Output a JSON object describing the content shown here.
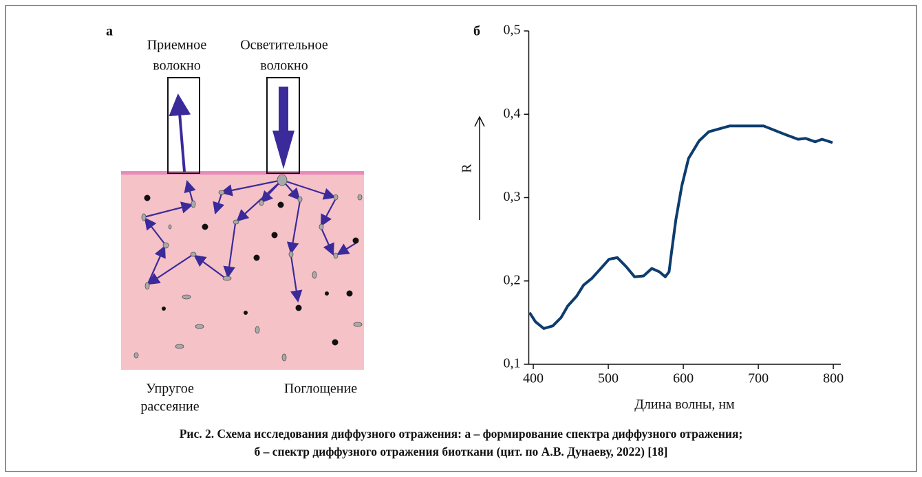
{
  "panel_a": {
    "label": "а",
    "receiving_fiber": [
      "Приемное",
      "волокно"
    ],
    "illuminating_fiber": [
      "Осветительное",
      "волокно"
    ],
    "elastic_scattering": [
      "Упругое",
      "рассеяние"
    ],
    "absorption": "Поглощение"
  },
  "chart_data": {
    "type": "line",
    "label": "б",
    "x_label": "Длина волны, нм",
    "y_label": "R",
    "x": [
      395,
      403,
      414,
      426,
      437,
      446,
      458,
      467,
      478,
      489,
      501,
      512,
      524,
      535,
      547,
      558,
      568,
      576,
      581,
      584,
      590,
      598,
      607,
      621,
      634,
      662,
      689,
      707,
      735,
      753,
      763,
      776,
      785,
      799
    ],
    "series": [
      {
        "color": "#0d3c6e",
        "values": [
          0.162,
          0.151,
          0.143,
          0.146,
          0.156,
          0.17,
          0.182,
          0.195,
          0.203,
          0.214,
          0.226,
          0.228,
          0.217,
          0.205,
          0.206,
          0.215,
          0.211,
          0.205,
          0.211,
          0.232,
          0.273,
          0.314,
          0.347,
          0.368,
          0.379,
          0.386,
          0.386,
          0.386,
          0.376,
          0.37,
          0.371,
          0.367,
          0.37,
          0.366
        ]
      }
    ],
    "xlim": [
      394,
      810
    ],
    "ylim": [
      0.1,
      0.5
    ],
    "xticks": [
      400,
      500,
      600,
      700,
      800
    ],
    "yticks": [
      {
        "value": 0.1,
        "label": "0,1"
      },
      {
        "value": 0.2,
        "label": "0,2"
      },
      {
        "value": 0.3,
        "label": "0,3"
      },
      {
        "value": 0.4,
        "label": "0,4"
      },
      {
        "value": 0.5,
        "label": "0,5"
      }
    ]
  },
  "caption": [
    "Рис. 2. Схема исследования диффузного отражения: а – формирование спектра диффузного отражения;",
    "б – спектр диффузного отражения биоткани (цит. по А.В. Дунаеву, 2022) [18]"
  ]
}
